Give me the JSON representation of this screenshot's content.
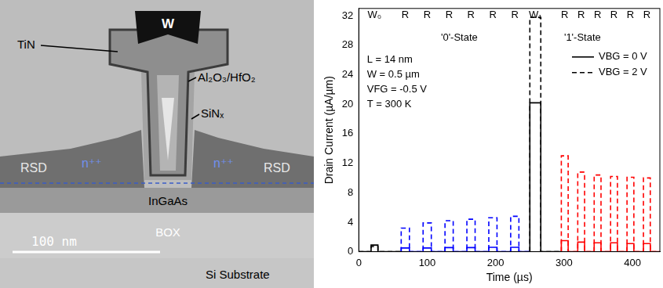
{
  "diagram": {
    "gate_metal": "W",
    "liner": "TiN",
    "dielectric": "Al₂O₃/HfO₂",
    "spacer": "SiNₓ",
    "source_drain": "RSD",
    "doping": "n⁺⁺",
    "channel": "InGaAs",
    "insulator": "BOX",
    "substrate": "Si Substrate",
    "scale_bar": "100 nm"
  },
  "chart_data": {
    "type": "line",
    "x_label": "Time (µs)",
    "y_label": "Drain Current (µA/µm)",
    "xlim": [
      0,
      440
    ],
    "xticks": [
      0,
      100,
      200,
      300,
      400
    ],
    "ylim": [
      0,
      33
    ],
    "yticks": [
      0,
      4,
      8,
      12,
      16,
      20,
      24,
      28,
      32
    ],
    "grid": false,
    "legend": "upper right",
    "annotations": [
      {
        "text": "L = 14 nm",
        "x": 12,
        "y": 26
      },
      {
        "text": "W = 0.5 µm",
        "x": 12,
        "y": 24
      },
      {
        "text": "VFG = -0.5 V",
        "x": 12,
        "y": 22
      },
      {
        "text": "T = 300 K",
        "x": 12,
        "y": 20
      },
      {
        "text": "'0'-State",
        "x": 120,
        "y": 29
      },
      {
        "text": "'1'-State",
        "x": 300,
        "y": 29
      }
    ],
    "pulse_labels": [
      {
        "label": "W₀",
        "x": 23
      },
      {
        "label": "R",
        "x": 68
      },
      {
        "label": "R",
        "x": 100
      },
      {
        "label": "R",
        "x": 132
      },
      {
        "label": "R",
        "x": 164
      },
      {
        "label": "R",
        "x": 196
      },
      {
        "label": "R",
        "x": 228
      },
      {
        "label": "W₁",
        "x": 258
      },
      {
        "label": "R",
        "x": 301
      },
      {
        "label": "R",
        "x": 325
      },
      {
        "label": "R",
        "x": 349
      },
      {
        "label": "R",
        "x": 373
      },
      {
        "label": "R",
        "x": 397
      },
      {
        "label": "R",
        "x": 421
      }
    ],
    "series": [
      {
        "name": "VBG = 0 V",
        "color": "#000000",
        "line_style": "solid",
        "x": [
          0,
          18,
          18,
          28,
          28,
          62,
          62,
          74,
          74,
          94,
          94,
          106,
          106,
          126,
          126,
          138,
          138,
          158,
          158,
          170,
          170,
          190,
          190,
          202,
          202,
          222,
          222,
          234,
          234,
          250,
          250,
          266,
          266,
          296,
          296,
          306,
          306,
          320,
          320,
          330,
          330,
          344,
          344,
          354,
          354,
          368,
          368,
          378,
          378,
          392,
          392,
          402,
          402,
          416,
          416,
          426,
          426,
          440
        ],
        "values": [
          0,
          0,
          0.9,
          0.9,
          0,
          0,
          0.5,
          0.5,
          0,
          0,
          0.5,
          0.5,
          0,
          0,
          0.55,
          0.55,
          0,
          0,
          0.55,
          0.55,
          0,
          0,
          0.6,
          0.6,
          0,
          0,
          0.6,
          0.6,
          0,
          0,
          20.2,
          20.2,
          0,
          0,
          1.5,
          1.5,
          0,
          0,
          1.3,
          1.3,
          0,
          0,
          1.2,
          1.2,
          0,
          0,
          1.2,
          1.2,
          0,
          0,
          1.1,
          1.1,
          0,
          0,
          1.1,
          1.1,
          0,
          0
        ],
        "colors": [
          "#000000",
          "#000000",
          "#000000",
          "#000000",
          "#000000",
          "#0000ff",
          "#0000ff",
          "#0000ff",
          "#0000ff",
          "#0000ff",
          "#0000ff",
          "#0000ff",
          "#0000ff",
          "#0000ff",
          "#0000ff",
          "#0000ff",
          "#0000ff",
          "#0000ff",
          "#0000ff",
          "#0000ff",
          "#0000ff",
          "#0000ff",
          "#0000ff",
          "#0000ff",
          "#0000ff",
          "#0000ff",
          "#0000ff",
          "#0000ff",
          "#0000ff",
          "#000000",
          "#000000",
          "#000000",
          "#000000",
          "#ff0000",
          "#ff0000",
          "#ff0000",
          "#ff0000",
          "#ff0000",
          "#ff0000",
          "#ff0000",
          "#ff0000",
          "#ff0000",
          "#ff0000",
          "#ff0000",
          "#ff0000",
          "#ff0000",
          "#ff0000",
          "#ff0000",
          "#ff0000",
          "#ff0000",
          "#ff0000",
          "#ff0000",
          "#ff0000",
          "#ff0000",
          "#ff0000",
          "#ff0000",
          "#ff0000",
          "#ff0000"
        ]
      },
      {
        "name": "VBG = 2 V",
        "color": "#000000",
        "line_style": "dashed",
        "x": [
          0,
          18,
          18,
          28,
          28,
          62,
          62,
          74,
          74,
          94,
          94,
          106,
          106,
          126,
          126,
          138,
          138,
          158,
          158,
          170,
          170,
          190,
          190,
          202,
          202,
          222,
          222,
          234,
          234,
          250,
          250,
          266,
          266,
          296,
          296,
          306,
          306,
          320,
          320,
          330,
          330,
          344,
          344,
          354,
          354,
          368,
          368,
          378,
          378,
          392,
          392,
          402,
          402,
          416,
          416,
          426,
          426,
          440
        ],
        "values": [
          0,
          0,
          0.7,
          0.7,
          0,
          0,
          3.2,
          3.2,
          0,
          0,
          3.9,
          3.9,
          0,
          0,
          4.2,
          4.2,
          0,
          0,
          4.4,
          4.4,
          0,
          0,
          4.6,
          4.6,
          0,
          0,
          4.8,
          4.8,
          0,
          0,
          31.8,
          31.8,
          0,
          0,
          13,
          13,
          0,
          0,
          10.8,
          10.8,
          0,
          0,
          10.4,
          10.4,
          0,
          0,
          10.2,
          10.2,
          0,
          0,
          10.1,
          10.1,
          0,
          0,
          10,
          10,
          0,
          0
        ],
        "colors": [
          "#000000",
          "#000000",
          "#000000",
          "#000000",
          "#000000",
          "#0000ff",
          "#0000ff",
          "#0000ff",
          "#0000ff",
          "#0000ff",
          "#0000ff",
          "#0000ff",
          "#0000ff",
          "#0000ff",
          "#0000ff",
          "#0000ff",
          "#0000ff",
          "#0000ff",
          "#0000ff",
          "#0000ff",
          "#0000ff",
          "#0000ff",
          "#0000ff",
          "#0000ff",
          "#0000ff",
          "#0000ff",
          "#0000ff",
          "#0000ff",
          "#0000ff",
          "#000000",
          "#000000",
          "#000000",
          "#000000",
          "#ff0000",
          "#ff0000",
          "#ff0000",
          "#ff0000",
          "#ff0000",
          "#ff0000",
          "#ff0000",
          "#ff0000",
          "#ff0000",
          "#ff0000",
          "#ff0000",
          "#ff0000",
          "#ff0000",
          "#ff0000",
          "#ff0000",
          "#ff0000",
          "#ff0000",
          "#ff0000",
          "#ff0000",
          "#ff0000",
          "#ff0000",
          "#ff0000",
          "#ff0000",
          "#ff0000",
          "#ff0000"
        ]
      }
    ]
  }
}
